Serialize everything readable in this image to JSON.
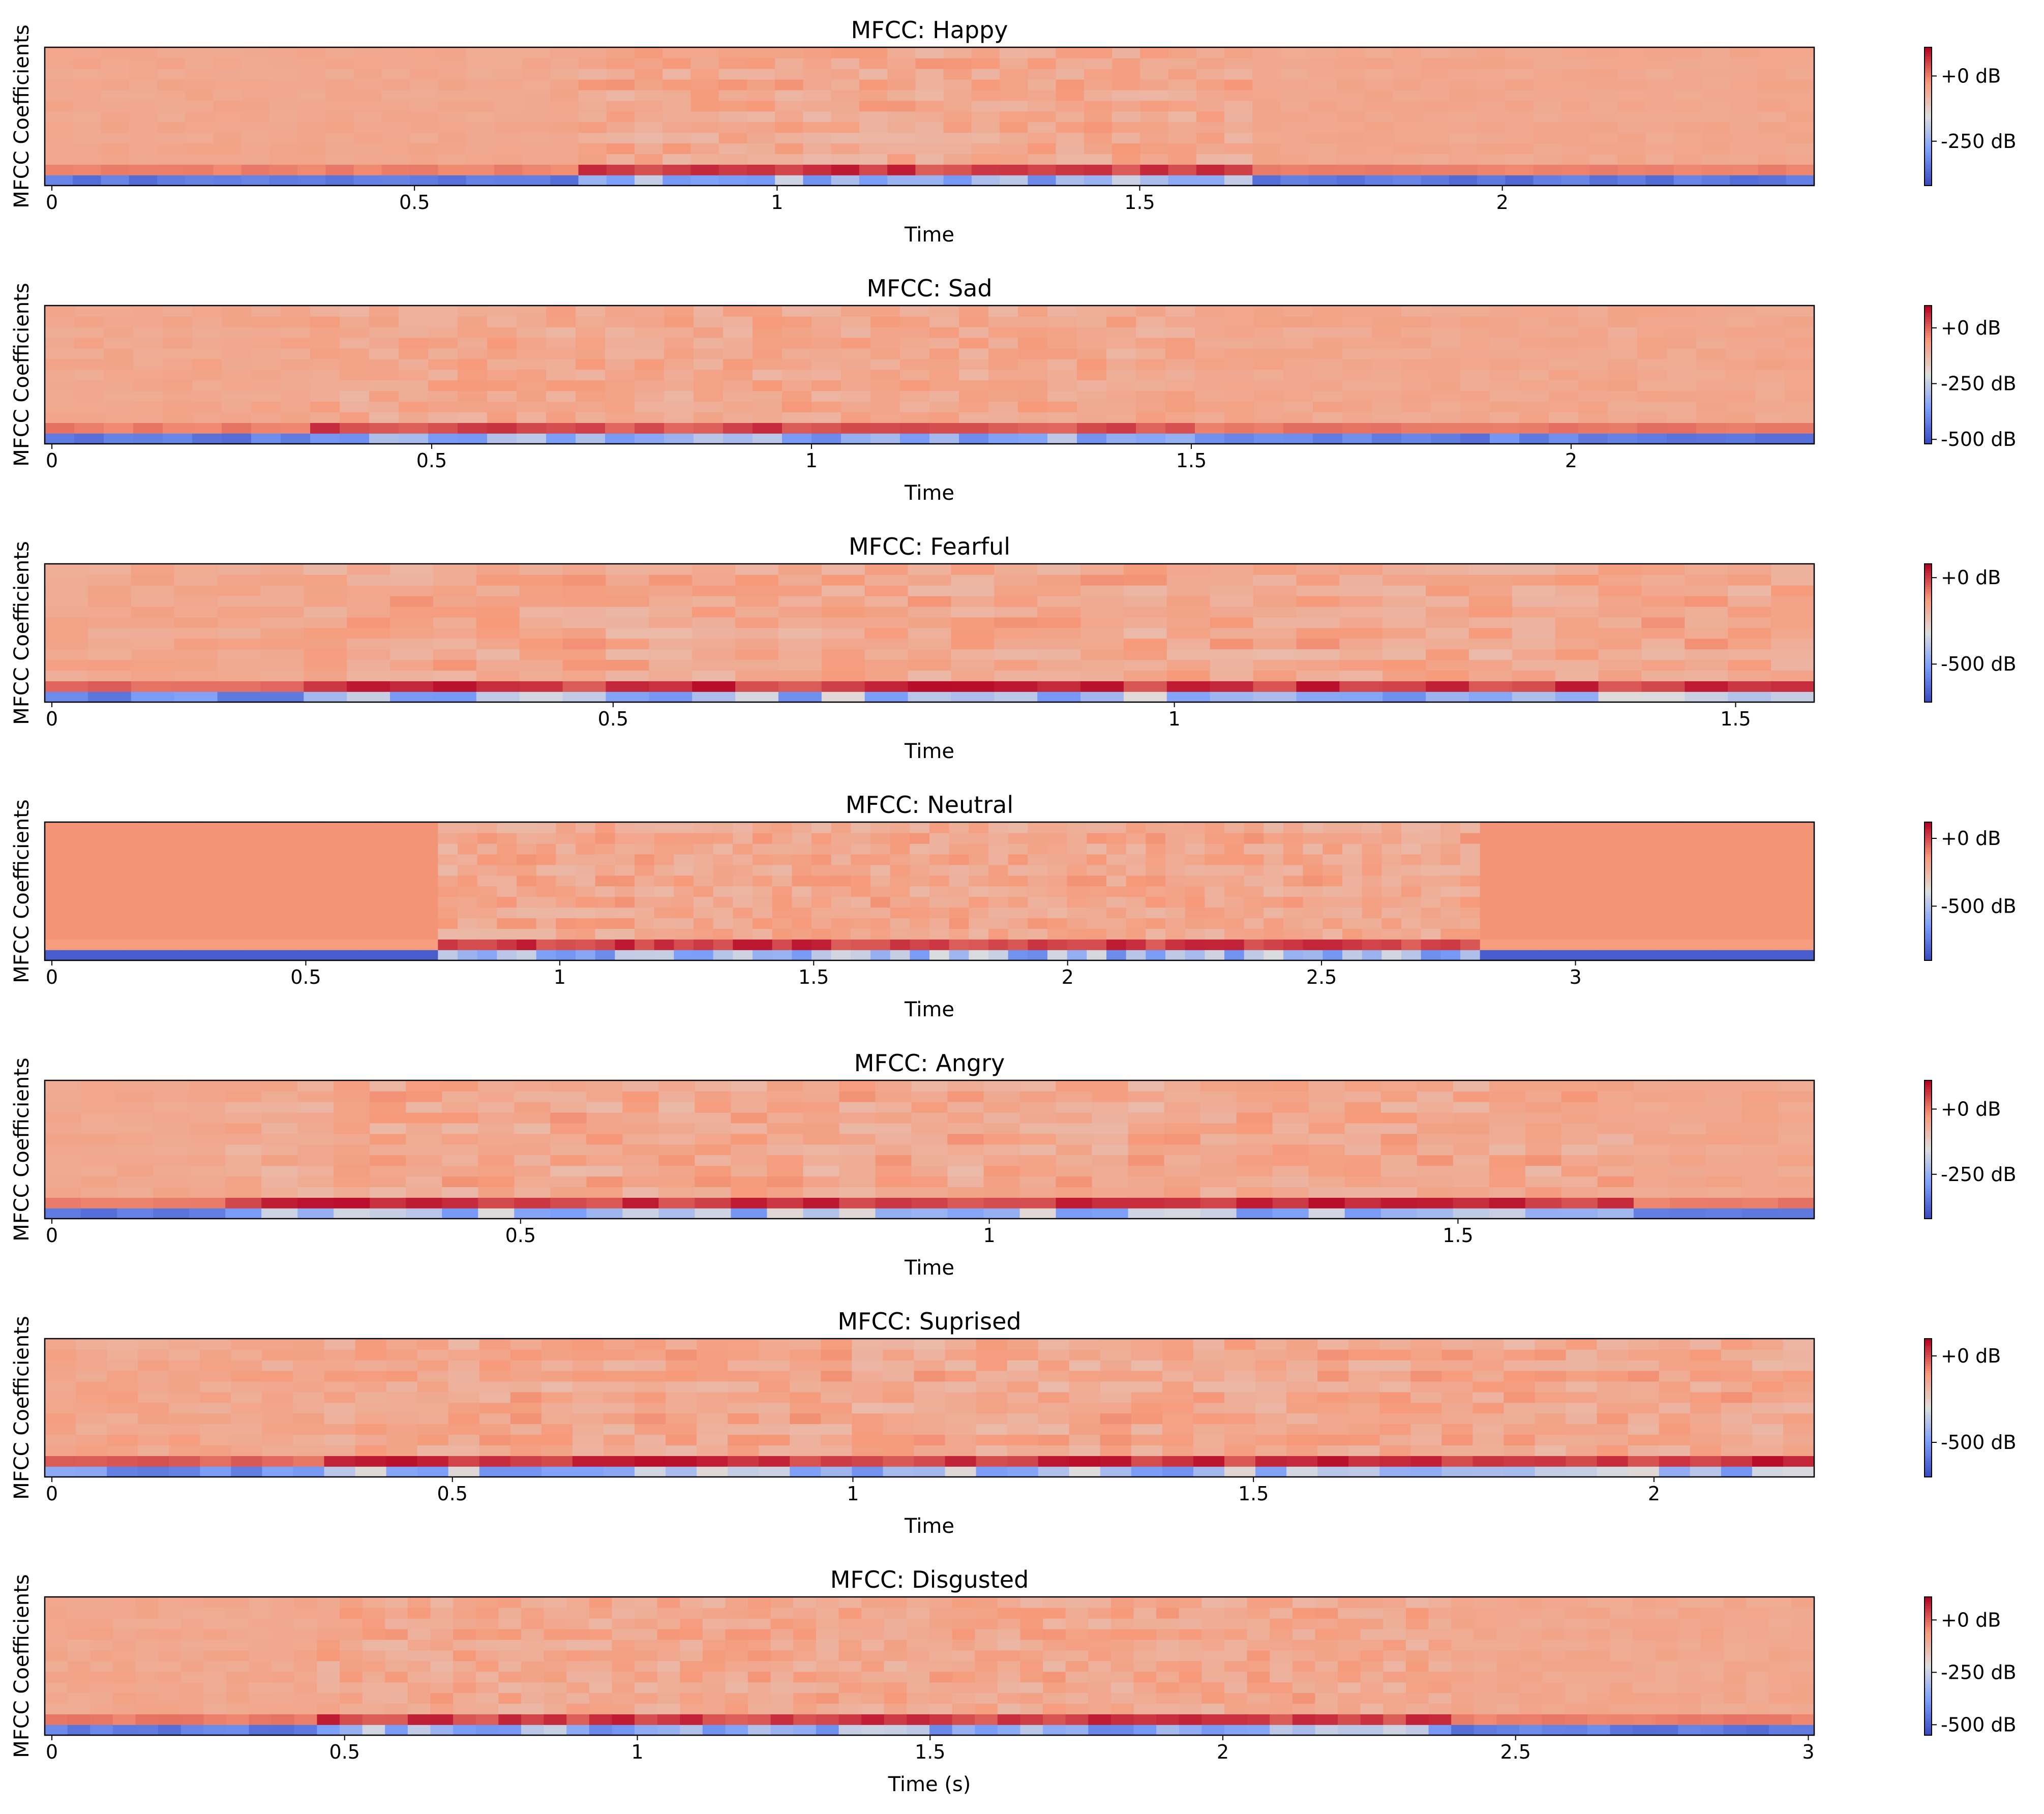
{
  "chart_data": [
    {
      "type": "heatmap",
      "title": "MFCC: Happy",
      "xlabel": "Time",
      "ylabel": "MFCC Coefficients",
      "xlim": [
        0,
        2.43
      ],
      "xticks": [
        0,
        0.5,
        1,
        1.5,
        2
      ],
      "xtick_labels": [
        "0",
        "0.5",
        "1",
        "1.5",
        "2"
      ],
      "colorbar": {
        "vmin": -420,
        "vmax": 110,
        "ticks": [
          0,
          -250
        ],
        "labels": [
          "+0 dB",
          "-250 dB"
        ]
      },
      "segments": [
        {
          "start": 0.0,
          "end": 0.74,
          "energy": 0.25
        },
        {
          "start": 0.74,
          "end": 1.67,
          "energy": 0.9
        },
        {
          "start": 1.67,
          "end": 2.43,
          "energy": 0.25
        }
      ]
    },
    {
      "type": "heatmap",
      "title": "MFCC: Sad",
      "xlabel": "Time",
      "ylabel": "MFCC Coefficients",
      "xlim": [
        0,
        2.32
      ],
      "xticks": [
        0,
        0.5,
        1,
        1.5,
        2
      ],
      "xtick_labels": [
        "0",
        "0.5",
        "1",
        "1.5",
        "2"
      ],
      "colorbar": {
        "vmin": -520,
        "vmax": 100,
        "ticks": [
          0,
          -250,
          -500
        ],
        "labels": [
          "+0 dB",
          "-250 dB",
          "-500 dB"
        ]
      },
      "segments": [
        {
          "start": 0.0,
          "end": 0.34,
          "energy": 0.3
        },
        {
          "start": 0.34,
          "end": 1.5,
          "energy": 0.75
        },
        {
          "start": 1.5,
          "end": 2.32,
          "energy": 0.35
        }
      ]
    },
    {
      "type": "heatmap",
      "title": "MFCC: Fearful",
      "xlabel": "Time",
      "ylabel": "MFCC Coefficients",
      "xlim": [
        0,
        1.57
      ],
      "xticks": [
        0,
        0.5,
        1,
        1.5
      ],
      "xtick_labels": [
        "0",
        "0.5",
        "1",
        "1.5"
      ],
      "colorbar": {
        "vmin": -720,
        "vmax": 80,
        "ticks": [
          0,
          -500
        ],
        "labels": [
          "+0 dB",
          "-500 dB"
        ]
      },
      "segments": [
        {
          "start": 0.0,
          "end": 0.22,
          "energy": 0.45
        },
        {
          "start": 0.22,
          "end": 1.57,
          "energy": 0.95
        }
      ]
    },
    {
      "type": "heatmap",
      "title": "MFCC: Neutral",
      "xlabel": "Time",
      "ylabel": "MFCC Coefficients",
      "xlim": [
        0,
        3.47
      ],
      "xticks": [
        0,
        0.5,
        1,
        1.5,
        2,
        2.5,
        3
      ],
      "xtick_labels": [
        "0",
        "0.5",
        "1",
        "1.5",
        "2",
        "2.5",
        "3"
      ],
      "colorbar": {
        "vmin": -900,
        "vmax": 120,
        "ticks": [
          0,
          -500
        ],
        "labels": [
          "+0 dB",
          "-500 dB"
        ]
      },
      "segments": [
        {
          "start": 0.0,
          "end": 0.76,
          "energy": 0.0
        },
        {
          "start": 0.76,
          "end": 2.83,
          "energy": 0.9
        },
        {
          "start": 2.83,
          "end": 3.47,
          "energy": 0.0
        }
      ]
    },
    {
      "type": "heatmap",
      "title": "MFCC: Angry",
      "xlabel": "Time",
      "ylabel": "MFCC Coefficients",
      "xlim": [
        0,
        1.88
      ],
      "xticks": [
        0,
        0.5,
        1,
        1.5
      ],
      "xtick_labels": [
        "0",
        "0.5",
        "1",
        "1.5"
      ],
      "colorbar": {
        "vmin": -420,
        "vmax": 110,
        "ticks": [
          0,
          -250
        ],
        "labels": [
          "+0 dB",
          "-250 dB"
        ]
      },
      "segments": [
        {
          "start": 0.0,
          "end": 0.2,
          "energy": 0.25
        },
        {
          "start": 0.2,
          "end": 1.68,
          "energy": 0.95
        },
        {
          "start": 1.68,
          "end": 1.88,
          "energy": 0.3
        }
      ]
    },
    {
      "type": "heatmap",
      "title": "MFCC: Suprised",
      "xlabel": "Time",
      "ylabel": "MFCC Coefficients",
      "xlim": [
        0,
        2.2
      ],
      "xticks": [
        0,
        0.5,
        1,
        1.5,
        2
      ],
      "xtick_labels": [
        "0",
        "0.5",
        "1",
        "1.5",
        "2"
      ],
      "colorbar": {
        "vmin": -700,
        "vmax": 100,
        "ticks": [
          0,
          -500
        ],
        "labels": [
          "+0 dB",
          "-500 dB"
        ]
      },
      "segments": [
        {
          "start": 0.0,
          "end": 0.35,
          "energy": 0.55
        },
        {
          "start": 0.35,
          "end": 2.2,
          "energy": 0.95
        }
      ]
    },
    {
      "type": "heatmap",
      "title": "MFCC: Disgusted",
      "xlabel": "Time (s)",
      "ylabel": "MFCC Coefficients",
      "xlim": [
        0,
        3.01
      ],
      "xticks": [
        0,
        0.5,
        1,
        1.5,
        2,
        2.5,
        3
      ],
      "xtick_labels": [
        "0",
        "0.5",
        "1",
        "1.5",
        "2",
        "2.5",
        "3"
      ],
      "colorbar": {
        "vmin": -550,
        "vmax": 110,
        "ticks": [
          0,
          -250,
          -500
        ],
        "labels": [
          "+0 dB",
          "-250 dB",
          "-500 dB"
        ]
      },
      "segments": [
        {
          "start": 0.0,
          "end": 0.45,
          "energy": 0.3
        },
        {
          "start": 0.45,
          "end": 2.4,
          "energy": 0.85
        },
        {
          "start": 2.4,
          "end": 3.01,
          "energy": 0.3
        }
      ]
    }
  ]
}
